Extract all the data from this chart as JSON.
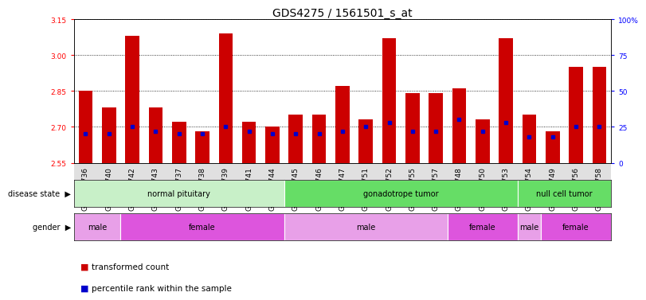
{
  "title": "GDS4275 / 1561501_s_at",
  "samples": [
    "GSM663736",
    "GSM663740",
    "GSM663742",
    "GSM663743",
    "GSM663737",
    "GSM663738",
    "GSM663739",
    "GSM663741",
    "GSM663744",
    "GSM663745",
    "GSM663746",
    "GSM663747",
    "GSM663751",
    "GSM663752",
    "GSM663755",
    "GSM663757",
    "GSM663748",
    "GSM663750",
    "GSM663753",
    "GSM663754",
    "GSM663749",
    "GSM663756",
    "GSM663758"
  ],
  "transformed_count": [
    2.85,
    2.78,
    3.08,
    2.78,
    2.72,
    2.68,
    3.09,
    2.72,
    2.7,
    2.75,
    2.75,
    2.87,
    2.73,
    3.07,
    2.84,
    2.84,
    2.86,
    2.73,
    3.07,
    2.75,
    2.68,
    2.95,
    2.95
  ],
  "percentile_rank": [
    20,
    20,
    25,
    22,
    20,
    20,
    25,
    22,
    20,
    20,
    20,
    22,
    25,
    28,
    22,
    22,
    30,
    22,
    28,
    18,
    18,
    25,
    25
  ],
  "ylim_left": [
    2.55,
    3.15
  ],
  "yticks_left": [
    2.55,
    2.7,
    2.85,
    3.0,
    3.15
  ],
  "ylim_right": [
    0,
    100
  ],
  "yticks_right": [
    0,
    25,
    50,
    75,
    100
  ],
  "yticklabels_right": [
    "0",
    "25",
    "50",
    "75",
    "100%"
  ],
  "bar_color": "#cc0000",
  "marker_color": "#0000cc",
  "bg_color": "#ffffff",
  "disease_state_groups": [
    {
      "label": "normal pituitary",
      "start": 0,
      "end": 8,
      "color": "#c8f0c8"
    },
    {
      "label": "gonadotrope tumor",
      "start": 9,
      "end": 18,
      "color": "#66dd66"
    },
    {
      "label": "null cell tumor",
      "start": 19,
      "end": 22,
      "color": "#66dd66"
    }
  ],
  "gender_groups": [
    {
      "label": "male",
      "start": 0,
      "end": 1,
      "color": "#e8a0e8"
    },
    {
      "label": "female",
      "start": 2,
      "end": 8,
      "color": "#dd55dd"
    },
    {
      "label": "male",
      "start": 9,
      "end": 15,
      "color": "#e8a0e8"
    },
    {
      "label": "female",
      "start": 16,
      "end": 18,
      "color": "#dd55dd"
    },
    {
      "label": "male",
      "start": 19,
      "end": 19,
      "color": "#e8a0e8"
    },
    {
      "label": "female",
      "start": 20,
      "end": 22,
      "color": "#dd55dd"
    }
  ],
  "title_fontsize": 10,
  "tick_fontsize": 6.5,
  "bar_width": 0.6
}
